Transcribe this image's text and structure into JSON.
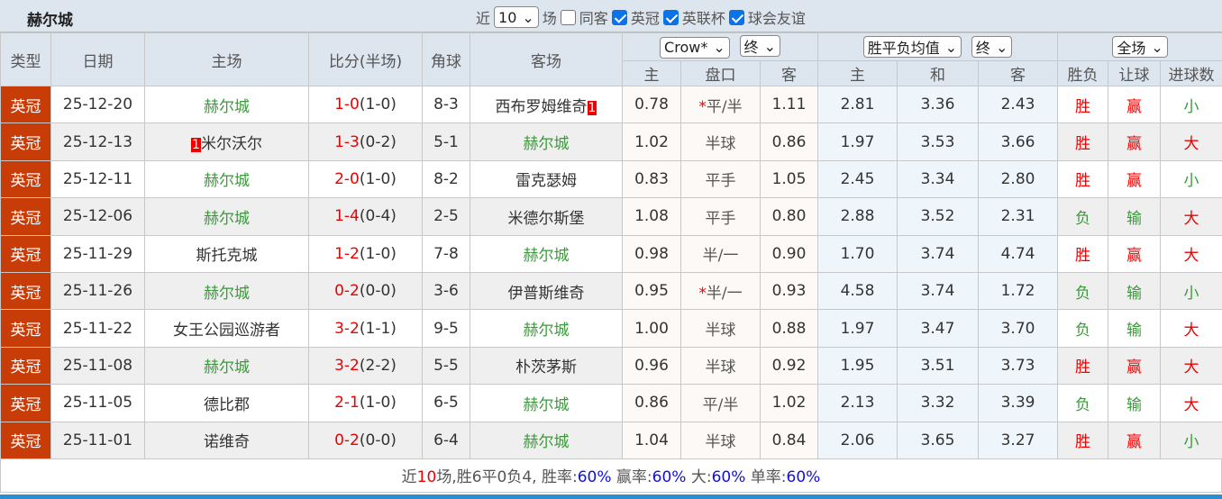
{
  "team": "赫尔城",
  "filters": {
    "near_label": "近",
    "count": "10",
    "unit": "场",
    "same_host": "同客",
    "same_host_checked": false,
    "leagues": [
      {
        "label": "英冠",
        "checked": true
      },
      {
        "label": "英联杯",
        "checked": true
      },
      {
        "label": "球会友谊",
        "checked": true
      }
    ]
  },
  "headers": {
    "type": "类型",
    "date": "日期",
    "home": "主场",
    "score": "比分(半场)",
    "corner": "角球",
    "away": "客场",
    "company": "Crow*",
    "company_stage": "终",
    "avg": "胜平负均值",
    "avg_stage": "终",
    "scope": "全场",
    "h_home": "主",
    "h_line": "盘口",
    "h_away": "客",
    "a_home": "主",
    "a_draw": "和",
    "a_away": "客",
    "wl": "胜负",
    "hc": "让球",
    "goals": "进球数"
  },
  "colors": {
    "accent": "#c83c08",
    "team": "#3a9a3a",
    "win": "#e00",
    "loss": "#3a9a3a"
  },
  "rows": [
    {
      "type": "英冠",
      "date": "25-12-20",
      "home": "赫尔城",
      "home_badge": "",
      "score": "1-0",
      "half": "(1-0)",
      "corner": "8-3",
      "away": "西布罗姆维奇",
      "away_badge": "1",
      "o1": "0.78",
      "line": "平/半",
      "star": "*",
      "o2": "1.11",
      "a1": "2.81",
      "a2": "3.36",
      "a3": "2.43",
      "wl": "胜",
      "hc": "赢",
      "g": "小"
    },
    {
      "type": "英冠",
      "date": "25-12-13",
      "home": "米尔沃尔",
      "home_badge": "1",
      "score": "1-3",
      "half": "(0-2)",
      "corner": "5-1",
      "away": "赫尔城",
      "away_badge": "",
      "o1": "1.02",
      "line": "半球",
      "star": "",
      "o2": "0.86",
      "a1": "1.97",
      "a2": "3.53",
      "a3": "3.66",
      "wl": "胜",
      "hc": "赢",
      "g": "大"
    },
    {
      "type": "英冠",
      "date": "25-12-11",
      "home": "赫尔城",
      "home_badge": "",
      "score": "2-0",
      "half": "(1-0)",
      "corner": "8-2",
      "away": "雷克瑟姆",
      "away_badge": "",
      "o1": "0.83",
      "line": "平手",
      "star": "",
      "o2": "1.05",
      "a1": "2.45",
      "a2": "3.34",
      "a3": "2.80",
      "wl": "胜",
      "hc": "赢",
      "g": "小"
    },
    {
      "type": "英冠",
      "date": "25-12-06",
      "home": "赫尔城",
      "home_badge": "",
      "score": "1-4",
      "half": "(0-4)",
      "corner": "2-5",
      "away": "米德尔斯堡",
      "away_badge": "",
      "o1": "1.08",
      "line": "平手",
      "star": "",
      "o2": "0.80",
      "a1": "2.88",
      "a2": "3.52",
      "a3": "2.31",
      "wl": "负",
      "hc": "输",
      "g": "大"
    },
    {
      "type": "英冠",
      "date": "25-11-29",
      "home": "斯托克城",
      "home_badge": "",
      "score": "1-2",
      "half": "(1-0)",
      "corner": "7-8",
      "away": "赫尔城",
      "away_badge": "",
      "o1": "0.98",
      "line": "半/一",
      "star": "",
      "o2": "0.90",
      "a1": "1.70",
      "a2": "3.74",
      "a3": "4.74",
      "wl": "胜",
      "hc": "赢",
      "g": "大"
    },
    {
      "type": "英冠",
      "date": "25-11-26",
      "home": "赫尔城",
      "home_badge": "",
      "score": "0-2",
      "half": "(0-0)",
      "corner": "3-6",
      "away": "伊普斯维奇",
      "away_badge": "",
      "o1": "0.95",
      "line": "半/一",
      "star": "*",
      "o2": "0.93",
      "a1": "4.58",
      "a2": "3.74",
      "a3": "1.72",
      "wl": "负",
      "hc": "输",
      "g": "小"
    },
    {
      "type": "英冠",
      "date": "25-11-22",
      "home": "女王公园巡游者",
      "home_badge": "",
      "score": "3-2",
      "half": "(1-1)",
      "corner": "9-5",
      "away": "赫尔城",
      "away_badge": "",
      "o1": "1.00",
      "line": "半球",
      "star": "",
      "o2": "0.88",
      "a1": "1.97",
      "a2": "3.47",
      "a3": "3.70",
      "wl": "负",
      "hc": "输",
      "g": "大"
    },
    {
      "type": "英冠",
      "date": "25-11-08",
      "home": "赫尔城",
      "home_badge": "",
      "score": "3-2",
      "half": "(2-2)",
      "corner": "5-5",
      "away": "朴茨茅斯",
      "away_badge": "",
      "o1": "0.96",
      "line": "半球",
      "star": "",
      "o2": "0.92",
      "a1": "1.95",
      "a2": "3.51",
      "a3": "3.73",
      "wl": "胜",
      "hc": "赢",
      "g": "大"
    },
    {
      "type": "英冠",
      "date": "25-11-05",
      "home": "德比郡",
      "home_badge": "",
      "score": "2-1",
      "half": "(1-0)",
      "corner": "6-5",
      "away": "赫尔城",
      "away_badge": "",
      "o1": "0.86",
      "line": "平/半",
      "star": "",
      "o2": "1.02",
      "a1": "2.13",
      "a2": "3.32",
      "a3": "3.39",
      "wl": "负",
      "hc": "输",
      "g": "大"
    },
    {
      "type": "英冠",
      "date": "25-11-01",
      "home": "诺维奇",
      "home_badge": "",
      "score": "0-2",
      "half": "(0-0)",
      "corner": "6-4",
      "away": "赫尔城",
      "away_badge": "",
      "o1": "1.04",
      "line": "半球",
      "star": "",
      "o2": "0.84",
      "a1": "2.06",
      "a2": "3.65",
      "a3": "3.27",
      "wl": "胜",
      "hc": "赢",
      "g": "小"
    }
  ],
  "summary": {
    "p1": "近",
    "n": "10",
    "p2": "场,胜6平0负4, 胜率:",
    "win_rate": "60%",
    "p3": " 赢率:",
    "hc_rate": "60%",
    "p4": " 大:",
    "big_rate": "60%",
    "p5": " 单率:",
    "odd_rate": "60%"
  }
}
